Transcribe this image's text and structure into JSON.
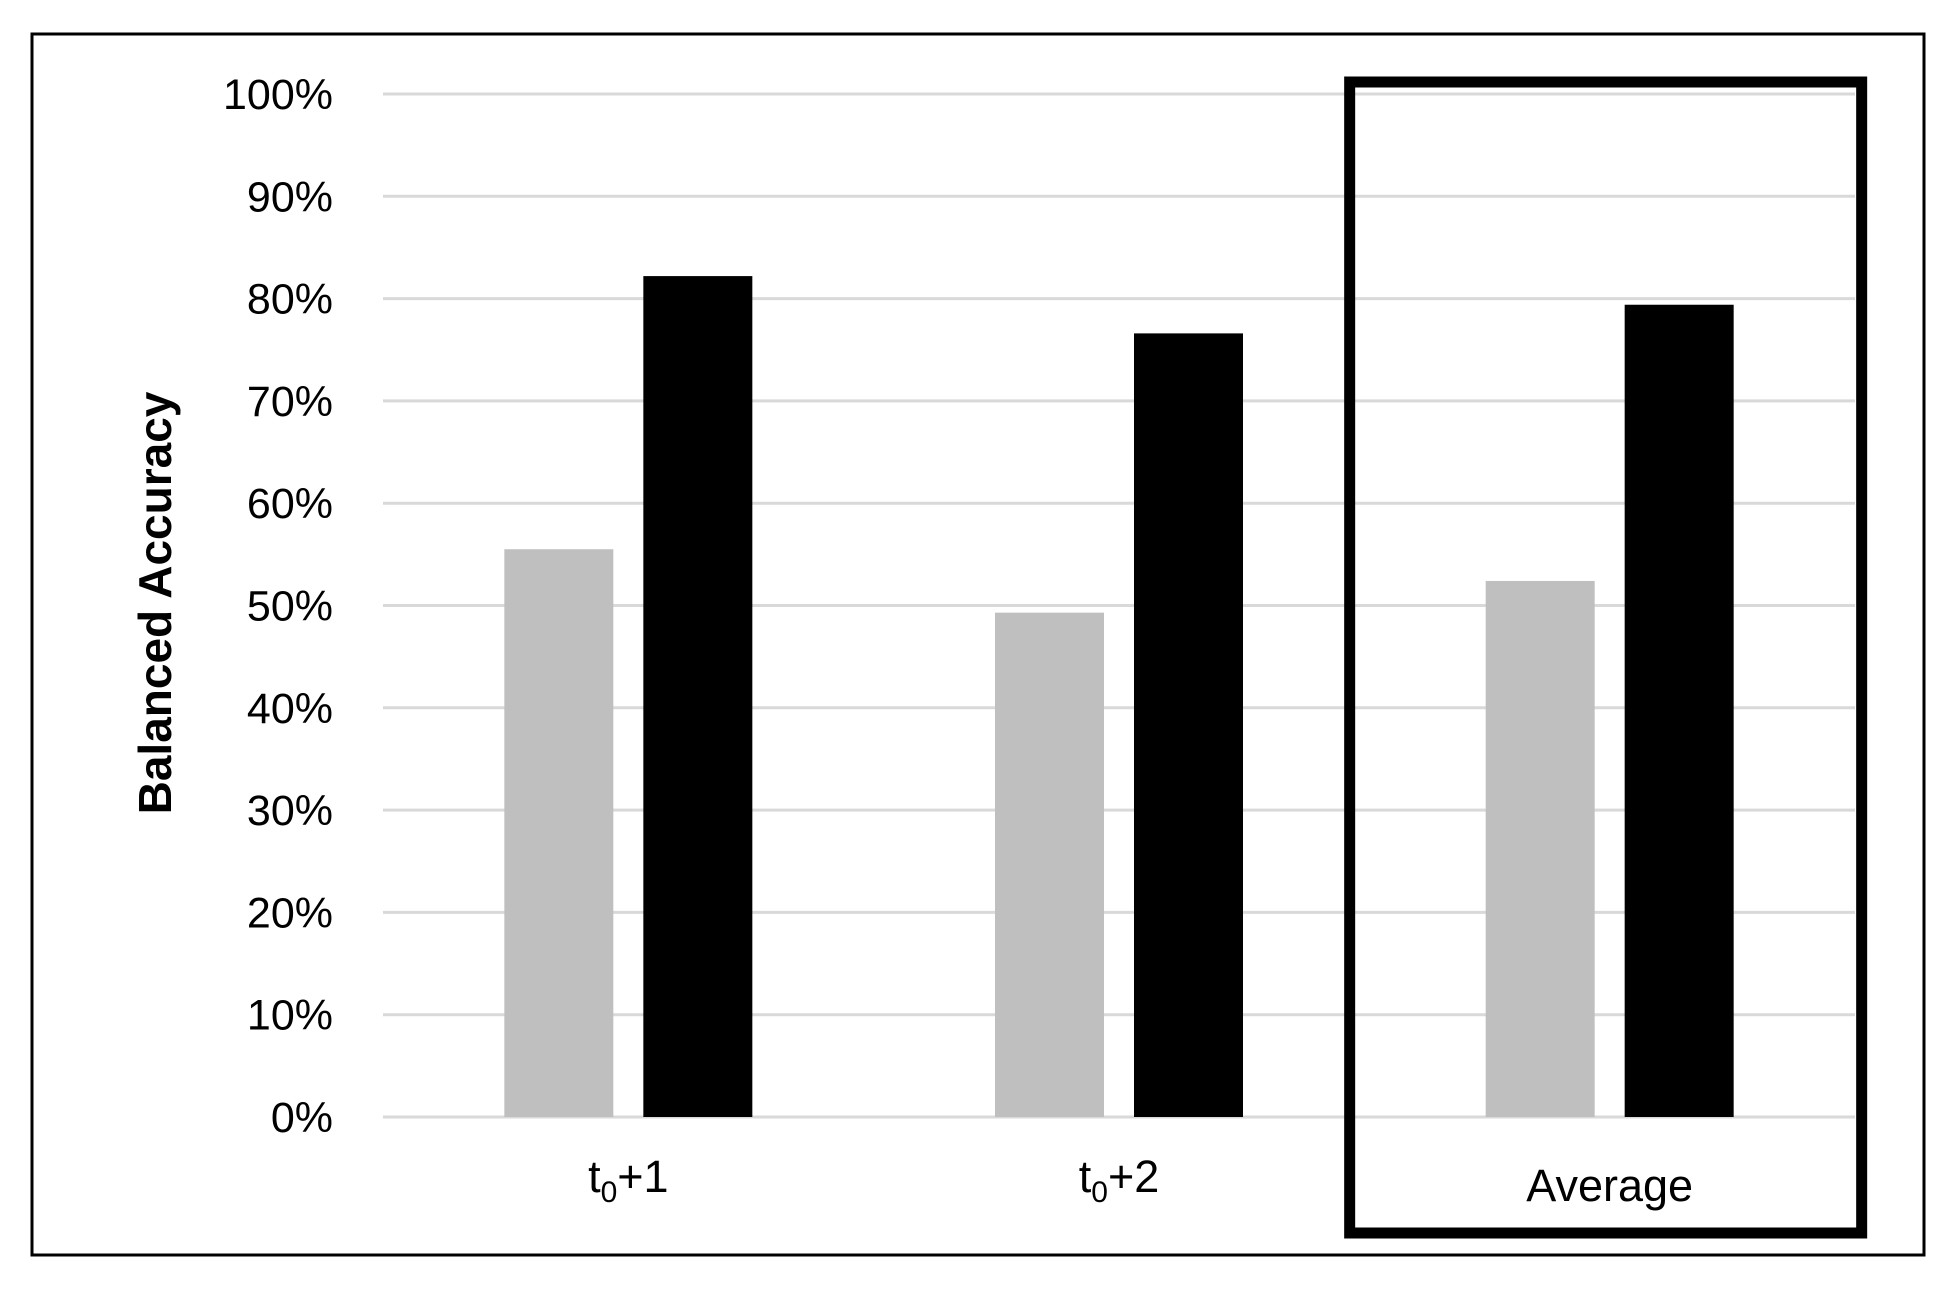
{
  "chart_data": {
    "type": "bar",
    "title": "",
    "xlabel": "",
    "ylabel": "Balanced Accuracy",
    "ylim": [
      0,
      100
    ],
    "y_tick_labels": [
      "0%",
      "10%",
      "20%",
      "30%",
      "40%",
      "50%",
      "60%",
      "70%",
      "80%",
      "90%",
      "100%"
    ],
    "categories": [
      {
        "base": "t",
        "sub": "0",
        "suffix": "+1"
      },
      {
        "base": "t",
        "sub": "0",
        "suffix": "+2"
      },
      {
        "base": "Average",
        "sub": "",
        "suffix": ""
      }
    ],
    "series": [
      {
        "color": "#bfbfbf",
        "values": [
          55.5,
          49.3,
          52.4
        ]
      },
      {
        "color": "#000000",
        "values": [
          82.2,
          76.6,
          79.4
        ]
      }
    ],
    "grid": true,
    "legend": "none",
    "highlighted_category": "Average"
  }
}
